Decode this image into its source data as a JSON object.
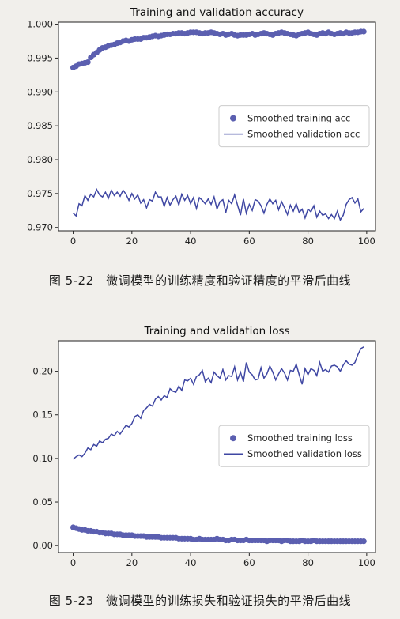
{
  "chart_data": [
    {
      "type": "scatter+line",
      "title": "Training and validation accuracy",
      "xlabel": "",
      "ylabel": "",
      "xlim": [
        -5,
        103
      ],
      "ylim": [
        0.9695,
        1.0003
      ],
      "xticks": [
        0,
        20,
        40,
        60,
        80,
        100
      ],
      "yticks": [
        0.97,
        0.975,
        0.98,
        0.985,
        0.99,
        0.995,
        1.0
      ],
      "ytick_labels": [
        "0.970",
        "0.975",
        "0.980",
        "0.985",
        "0.990",
        "0.995",
        "1.000"
      ],
      "legend_position": "center-right",
      "series": [
        {
          "name": "Smoothed training acc",
          "kind": "points",
          "color": "#5b5fb0",
          "x": [
            0,
            1,
            2,
            3,
            4,
            5,
            6,
            7,
            8,
            9,
            10,
            11,
            12,
            13,
            14,
            15,
            16,
            17,
            18,
            19,
            20,
            21,
            22,
            23,
            24,
            25,
            26,
            27,
            28,
            29,
            30,
            31,
            32,
            33,
            34,
            35,
            36,
            37,
            38,
            39,
            40,
            41,
            42,
            43,
            44,
            45,
            46,
            47,
            48,
            49,
            50,
            51,
            52,
            53,
            54,
            55,
            56,
            57,
            58,
            59,
            60,
            61,
            62,
            63,
            64,
            65,
            66,
            67,
            68,
            69,
            70,
            71,
            72,
            73,
            74,
            75,
            76,
            77,
            78,
            79,
            80,
            81,
            82,
            83,
            84,
            85,
            86,
            87,
            88,
            89,
            90,
            91,
            92,
            93,
            94,
            95,
            96,
            97,
            98,
            99
          ],
          "y": [
            0.9936,
            0.9938,
            0.9941,
            0.9942,
            0.9943,
            0.9944,
            0.9951,
            0.9955,
            0.9958,
            0.9962,
            0.9965,
            0.9966,
            0.9968,
            0.9969,
            0.997,
            0.9972,
            0.9973,
            0.9975,
            0.9976,
            0.9975,
            0.9977,
            0.9978,
            0.9978,
            0.9978,
            0.998,
            0.998,
            0.9981,
            0.9982,
            0.9983,
            0.9982,
            0.9983,
            0.9984,
            0.9985,
            0.9985,
            0.9986,
            0.9986,
            0.9987,
            0.9987,
            0.9986,
            0.9987,
            0.9988,
            0.9988,
            0.9988,
            0.9987,
            0.9986,
            0.9987,
            0.9987,
            0.9988,
            0.9987,
            0.9986,
            0.9985,
            0.9986,
            0.9984,
            0.9985,
            0.9986,
            0.9984,
            0.9983,
            0.9984,
            0.9984,
            0.9984,
            0.9985,
            0.9986,
            0.9984,
            0.9985,
            0.9986,
            0.9987,
            0.9986,
            0.9985,
            0.9984,
            0.9986,
            0.9987,
            0.9988,
            0.9987,
            0.9986,
            0.9985,
            0.9984,
            0.9983,
            0.9985,
            0.9986,
            0.9987,
            0.9988,
            0.9986,
            0.9985,
            0.9984,
            0.9986,
            0.9987,
            0.9986,
            0.9988,
            0.9986,
            0.9985,
            0.9986,
            0.9987,
            0.9986,
            0.9988,
            0.9987,
            0.9987,
            0.9988,
            0.9988,
            0.9989,
            0.9989
          ]
        },
        {
          "name": "Smoothed validation acc",
          "kind": "line",
          "color": "#3f47a3",
          "x": [
            0,
            1,
            2,
            3,
            4,
            5,
            6,
            7,
            8,
            9,
            10,
            11,
            12,
            13,
            14,
            15,
            16,
            17,
            18,
            19,
            20,
            21,
            22,
            23,
            24,
            25,
            26,
            27,
            28,
            29,
            30,
            31,
            32,
            33,
            34,
            35,
            36,
            37,
            38,
            39,
            40,
            41,
            42,
            43,
            44,
            45,
            46,
            47,
            48,
            49,
            50,
            51,
            52,
            53,
            54,
            55,
            56,
            57,
            58,
            59,
            60,
            61,
            62,
            63,
            64,
            65,
            66,
            67,
            68,
            69,
            70,
            71,
            72,
            73,
            74,
            75,
            76,
            77,
            78,
            79,
            80,
            81,
            82,
            83,
            84,
            85,
            86,
            87,
            88,
            89,
            90,
            91,
            92,
            93,
            94,
            95,
            96,
            97,
            98,
            99
          ],
          "y": [
            0.9721,
            0.9717,
            0.9735,
            0.9732,
            0.9747,
            0.974,
            0.9749,
            0.9745,
            0.9756,
            0.9748,
            0.9745,
            0.9752,
            0.9743,
            0.9755,
            0.9747,
            0.9752,
            0.9746,
            0.9755,
            0.9749,
            0.974,
            0.975,
            0.9742,
            0.9748,
            0.9736,
            0.9741,
            0.9729,
            0.9741,
            0.9739,
            0.9752,
            0.9745,
            0.9745,
            0.9731,
            0.9744,
            0.9733,
            0.9741,
            0.9746,
            0.9733,
            0.9749,
            0.974,
            0.9747,
            0.9735,
            0.9744,
            0.9728,
            0.9744,
            0.974,
            0.9735,
            0.9742,
            0.9734,
            0.9745,
            0.9727,
            0.9738,
            0.9741,
            0.9722,
            0.974,
            0.9735,
            0.9748,
            0.9733,
            0.9718,
            0.9742,
            0.9721,
            0.9734,
            0.9725,
            0.9741,
            0.9739,
            0.9732,
            0.9721,
            0.9734,
            0.9742,
            0.9735,
            0.974,
            0.9726,
            0.9738,
            0.9729,
            0.9719,
            0.9733,
            0.9724,
            0.9735,
            0.9722,
            0.9727,
            0.9714,
            0.9727,
            0.9723,
            0.9732,
            0.9715,
            0.9724,
            0.9718,
            0.972,
            0.9713,
            0.9719,
            0.9713,
            0.9724,
            0.9711,
            0.9718,
            0.9734,
            0.9741,
            0.9744,
            0.9736,
            0.9742,
            0.9723,
            0.9728
          ]
        }
      ]
    },
    {
      "type": "scatter+line",
      "title": "Training and validation loss",
      "xlabel": "",
      "ylabel": "",
      "xlim": [
        -5,
        103
      ],
      "ylim": [
        -0.008,
        0.235
      ],
      "xticks": [
        0,
        20,
        40,
        60,
        80,
        100
      ],
      "yticks": [
        0.0,
        0.05,
        0.1,
        0.15,
        0.2
      ],
      "ytick_labels": [
        "0.00",
        "0.05",
        "0.10",
        "0.15",
        "0.20"
      ],
      "legend_position": "center-right",
      "series": [
        {
          "name": "Smoothed training loss",
          "kind": "points",
          "color": "#5b5fb0",
          "x": [
            0,
            1,
            2,
            3,
            4,
            5,
            6,
            7,
            8,
            9,
            10,
            11,
            12,
            13,
            14,
            15,
            16,
            17,
            18,
            19,
            20,
            21,
            22,
            23,
            24,
            25,
            26,
            27,
            28,
            29,
            30,
            31,
            32,
            33,
            34,
            35,
            36,
            37,
            38,
            39,
            40,
            41,
            42,
            43,
            44,
            45,
            46,
            47,
            48,
            49,
            50,
            51,
            52,
            53,
            54,
            55,
            56,
            57,
            58,
            59,
            60,
            61,
            62,
            63,
            64,
            65,
            66,
            67,
            68,
            69,
            70,
            71,
            72,
            73,
            74,
            75,
            76,
            77,
            78,
            79,
            80,
            81,
            82,
            83,
            84,
            85,
            86,
            87,
            88,
            89,
            90,
            91,
            92,
            93,
            94,
            95,
            96,
            97,
            98,
            99
          ],
          "y": [
            0.021,
            0.02,
            0.019,
            0.018,
            0.018,
            0.017,
            0.017,
            0.016,
            0.016,
            0.015,
            0.015,
            0.014,
            0.014,
            0.014,
            0.013,
            0.013,
            0.013,
            0.012,
            0.012,
            0.012,
            0.012,
            0.011,
            0.011,
            0.011,
            0.011,
            0.01,
            0.01,
            0.01,
            0.01,
            0.01,
            0.009,
            0.009,
            0.009,
            0.009,
            0.009,
            0.009,
            0.008,
            0.008,
            0.008,
            0.008,
            0.008,
            0.007,
            0.007,
            0.008,
            0.007,
            0.007,
            0.007,
            0.007,
            0.007,
            0.008,
            0.007,
            0.007,
            0.006,
            0.006,
            0.007,
            0.007,
            0.006,
            0.006,
            0.006,
            0.007,
            0.006,
            0.006,
            0.006,
            0.006,
            0.006,
            0.006,
            0.005,
            0.006,
            0.006,
            0.006,
            0.006,
            0.005,
            0.006,
            0.006,
            0.005,
            0.005,
            0.005,
            0.005,
            0.006,
            0.005,
            0.005,
            0.005,
            0.006,
            0.005,
            0.005,
            0.005,
            0.005,
            0.005,
            0.005,
            0.005,
            0.005,
            0.005,
            0.005,
            0.005,
            0.005,
            0.005,
            0.005,
            0.005,
            0.005,
            0.005
          ]
        },
        {
          "name": "Smoothed validation loss",
          "kind": "line",
          "color": "#3f47a3",
          "x": [
            0,
            1,
            2,
            3,
            4,
            5,
            6,
            7,
            8,
            9,
            10,
            11,
            12,
            13,
            14,
            15,
            16,
            17,
            18,
            19,
            20,
            21,
            22,
            23,
            24,
            25,
            26,
            27,
            28,
            29,
            30,
            31,
            32,
            33,
            34,
            35,
            36,
            37,
            38,
            39,
            40,
            41,
            42,
            43,
            44,
            45,
            46,
            47,
            48,
            49,
            50,
            51,
            52,
            53,
            54,
            55,
            56,
            57,
            58,
            59,
            60,
            61,
            62,
            63,
            64,
            65,
            66,
            67,
            68,
            69,
            70,
            71,
            72,
            73,
            74,
            75,
            76,
            77,
            78,
            79,
            80,
            81,
            82,
            83,
            84,
            85,
            86,
            87,
            88,
            89,
            90,
            91,
            92,
            93,
            94,
            95,
            96,
            97,
            98,
            99
          ],
          "y": [
            0.099,
            0.102,
            0.104,
            0.102,
            0.106,
            0.112,
            0.11,
            0.116,
            0.114,
            0.12,
            0.118,
            0.122,
            0.123,
            0.128,
            0.126,
            0.131,
            0.128,
            0.133,
            0.138,
            0.136,
            0.14,
            0.148,
            0.15,
            0.146,
            0.155,
            0.158,
            0.162,
            0.16,
            0.168,
            0.171,
            0.167,
            0.172,
            0.17,
            0.18,
            0.177,
            0.176,
            0.183,
            0.178,
            0.19,
            0.189,
            0.192,
            0.185,
            0.194,
            0.196,
            0.201,
            0.188,
            0.192,
            0.187,
            0.199,
            0.195,
            0.192,
            0.202,
            0.19,
            0.195,
            0.194,
            0.205,
            0.19,
            0.199,
            0.188,
            0.21,
            0.199,
            0.196,
            0.19,
            0.191,
            0.204,
            0.192,
            0.197,
            0.206,
            0.199,
            0.19,
            0.197,
            0.203,
            0.198,
            0.19,
            0.201,
            0.2,
            0.208,
            0.196,
            0.185,
            0.203,
            0.196,
            0.203,
            0.201,
            0.195,
            0.21,
            0.2,
            0.202,
            0.199,
            0.206,
            0.207,
            0.205,
            0.2,
            0.207,
            0.212,
            0.208,
            0.207,
            0.21,
            0.219,
            0.226,
            0.228
          ]
        }
      ]
    }
  ],
  "captions": {
    "fig1": "图 5-22　微调模型的训练精度和验证精度的平滑后曲线",
    "fig2": "图 5-23　微调模型的训练损失和验证损失的平滑后曲线"
  }
}
